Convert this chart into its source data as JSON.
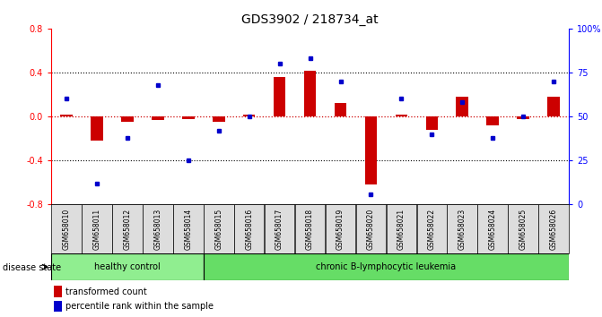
{
  "title": "GDS3902 / 218734_at",
  "samples": [
    "GSM658010",
    "GSM658011",
    "GSM658012",
    "GSM658013",
    "GSM658014",
    "GSM658015",
    "GSM658016",
    "GSM658017",
    "GSM658018",
    "GSM658019",
    "GSM658020",
    "GSM658021",
    "GSM658022",
    "GSM658023",
    "GSM658024",
    "GSM658025",
    "GSM658026"
  ],
  "red_values": [
    0.02,
    -0.22,
    -0.05,
    -0.03,
    -0.02,
    -0.05,
    0.02,
    0.36,
    0.42,
    0.12,
    -0.62,
    0.02,
    -0.12,
    0.18,
    -0.08,
    -0.02,
    0.18
  ],
  "blue_values": [
    0.6,
    0.12,
    0.38,
    0.68,
    0.25,
    0.42,
    0.5,
    0.8,
    0.83,
    0.7,
    0.06,
    0.6,
    0.4,
    0.58,
    0.38,
    0.5,
    0.7
  ],
  "ylim_left": [
    -0.8,
    0.8
  ],
  "ylim_right": [
    0,
    100
  ],
  "yticks_left": [
    -0.8,
    -0.4,
    0.0,
    0.4,
    0.8
  ],
  "yticks_right": [
    0,
    25,
    50,
    75,
    100
  ],
  "ytick_labels_right": [
    "0",
    "25",
    "50",
    "75",
    "100%"
  ],
  "healthy_count": 5,
  "disease_count": 12,
  "healthy_label": "healthy control",
  "disease_label": "chronic B-lymphocytic leukemia",
  "disease_state_label": "disease state",
  "legend_red": "transformed count",
  "legend_blue": "percentile rank within the sample",
  "bar_color": "#CC0000",
  "dot_color": "#0000CC",
  "bar_width": 0.4,
  "healthy_bg": "#90EE90",
  "disease_bg": "#66DD66",
  "xticklabel_bg": "#DDDDDD",
  "zero_line_color": "#CC0000",
  "grid_color": "black"
}
